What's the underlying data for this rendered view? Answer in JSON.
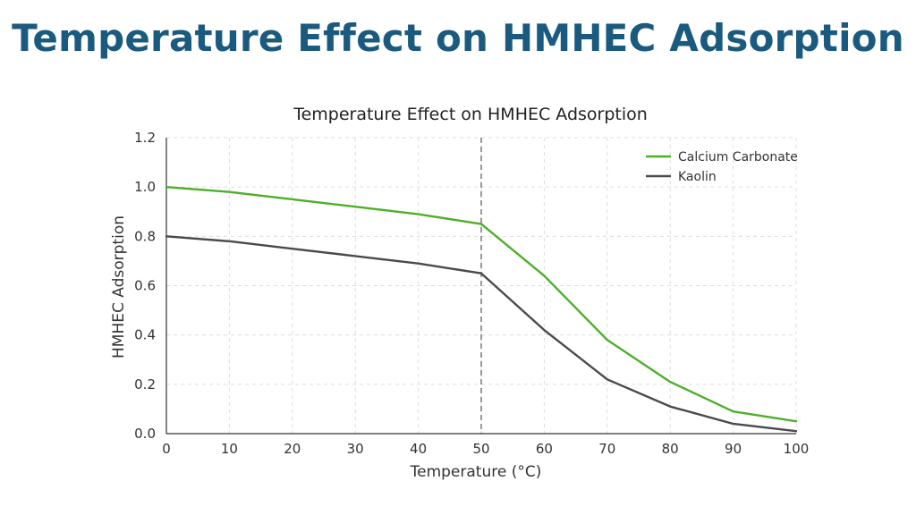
{
  "page": {
    "title": "Temperature Effect on HMHEC Adsorption"
  },
  "chart_data": {
    "type": "line",
    "title": "Temperature Effect on HMHEC Adsorption",
    "xlabel": "Temperature (°C)",
    "ylabel": "HMHEC Adsorption",
    "x": [
      0,
      10,
      20,
      30,
      40,
      50,
      60,
      70,
      80,
      90,
      100
    ],
    "xlim": [
      0,
      100
    ],
    "ylim": [
      0,
      1.2
    ],
    "xticks": [
      "0",
      "10",
      "20",
      "30",
      "40",
      "50",
      "60",
      "70",
      "80",
      "90",
      "100"
    ],
    "yticks": [
      "0.0",
      "0.2",
      "0.4",
      "0.6",
      "0.8",
      "1.0",
      "1.2"
    ],
    "grid": true,
    "legend_position": "top-right",
    "reference_line_x": 50,
    "series": [
      {
        "name": "Calcium Carbonate",
        "color": "#4caf2a",
        "values": [
          1.0,
          0.98,
          0.95,
          0.92,
          0.89,
          0.85,
          0.64,
          0.38,
          0.21,
          0.09,
          0.05
        ]
      },
      {
        "name": "Kaolin",
        "color": "#4a4a4e",
        "values": [
          0.8,
          0.78,
          0.75,
          0.72,
          0.69,
          0.65,
          0.42,
          0.22,
          0.11,
          0.04,
          0.01
        ]
      }
    ]
  }
}
